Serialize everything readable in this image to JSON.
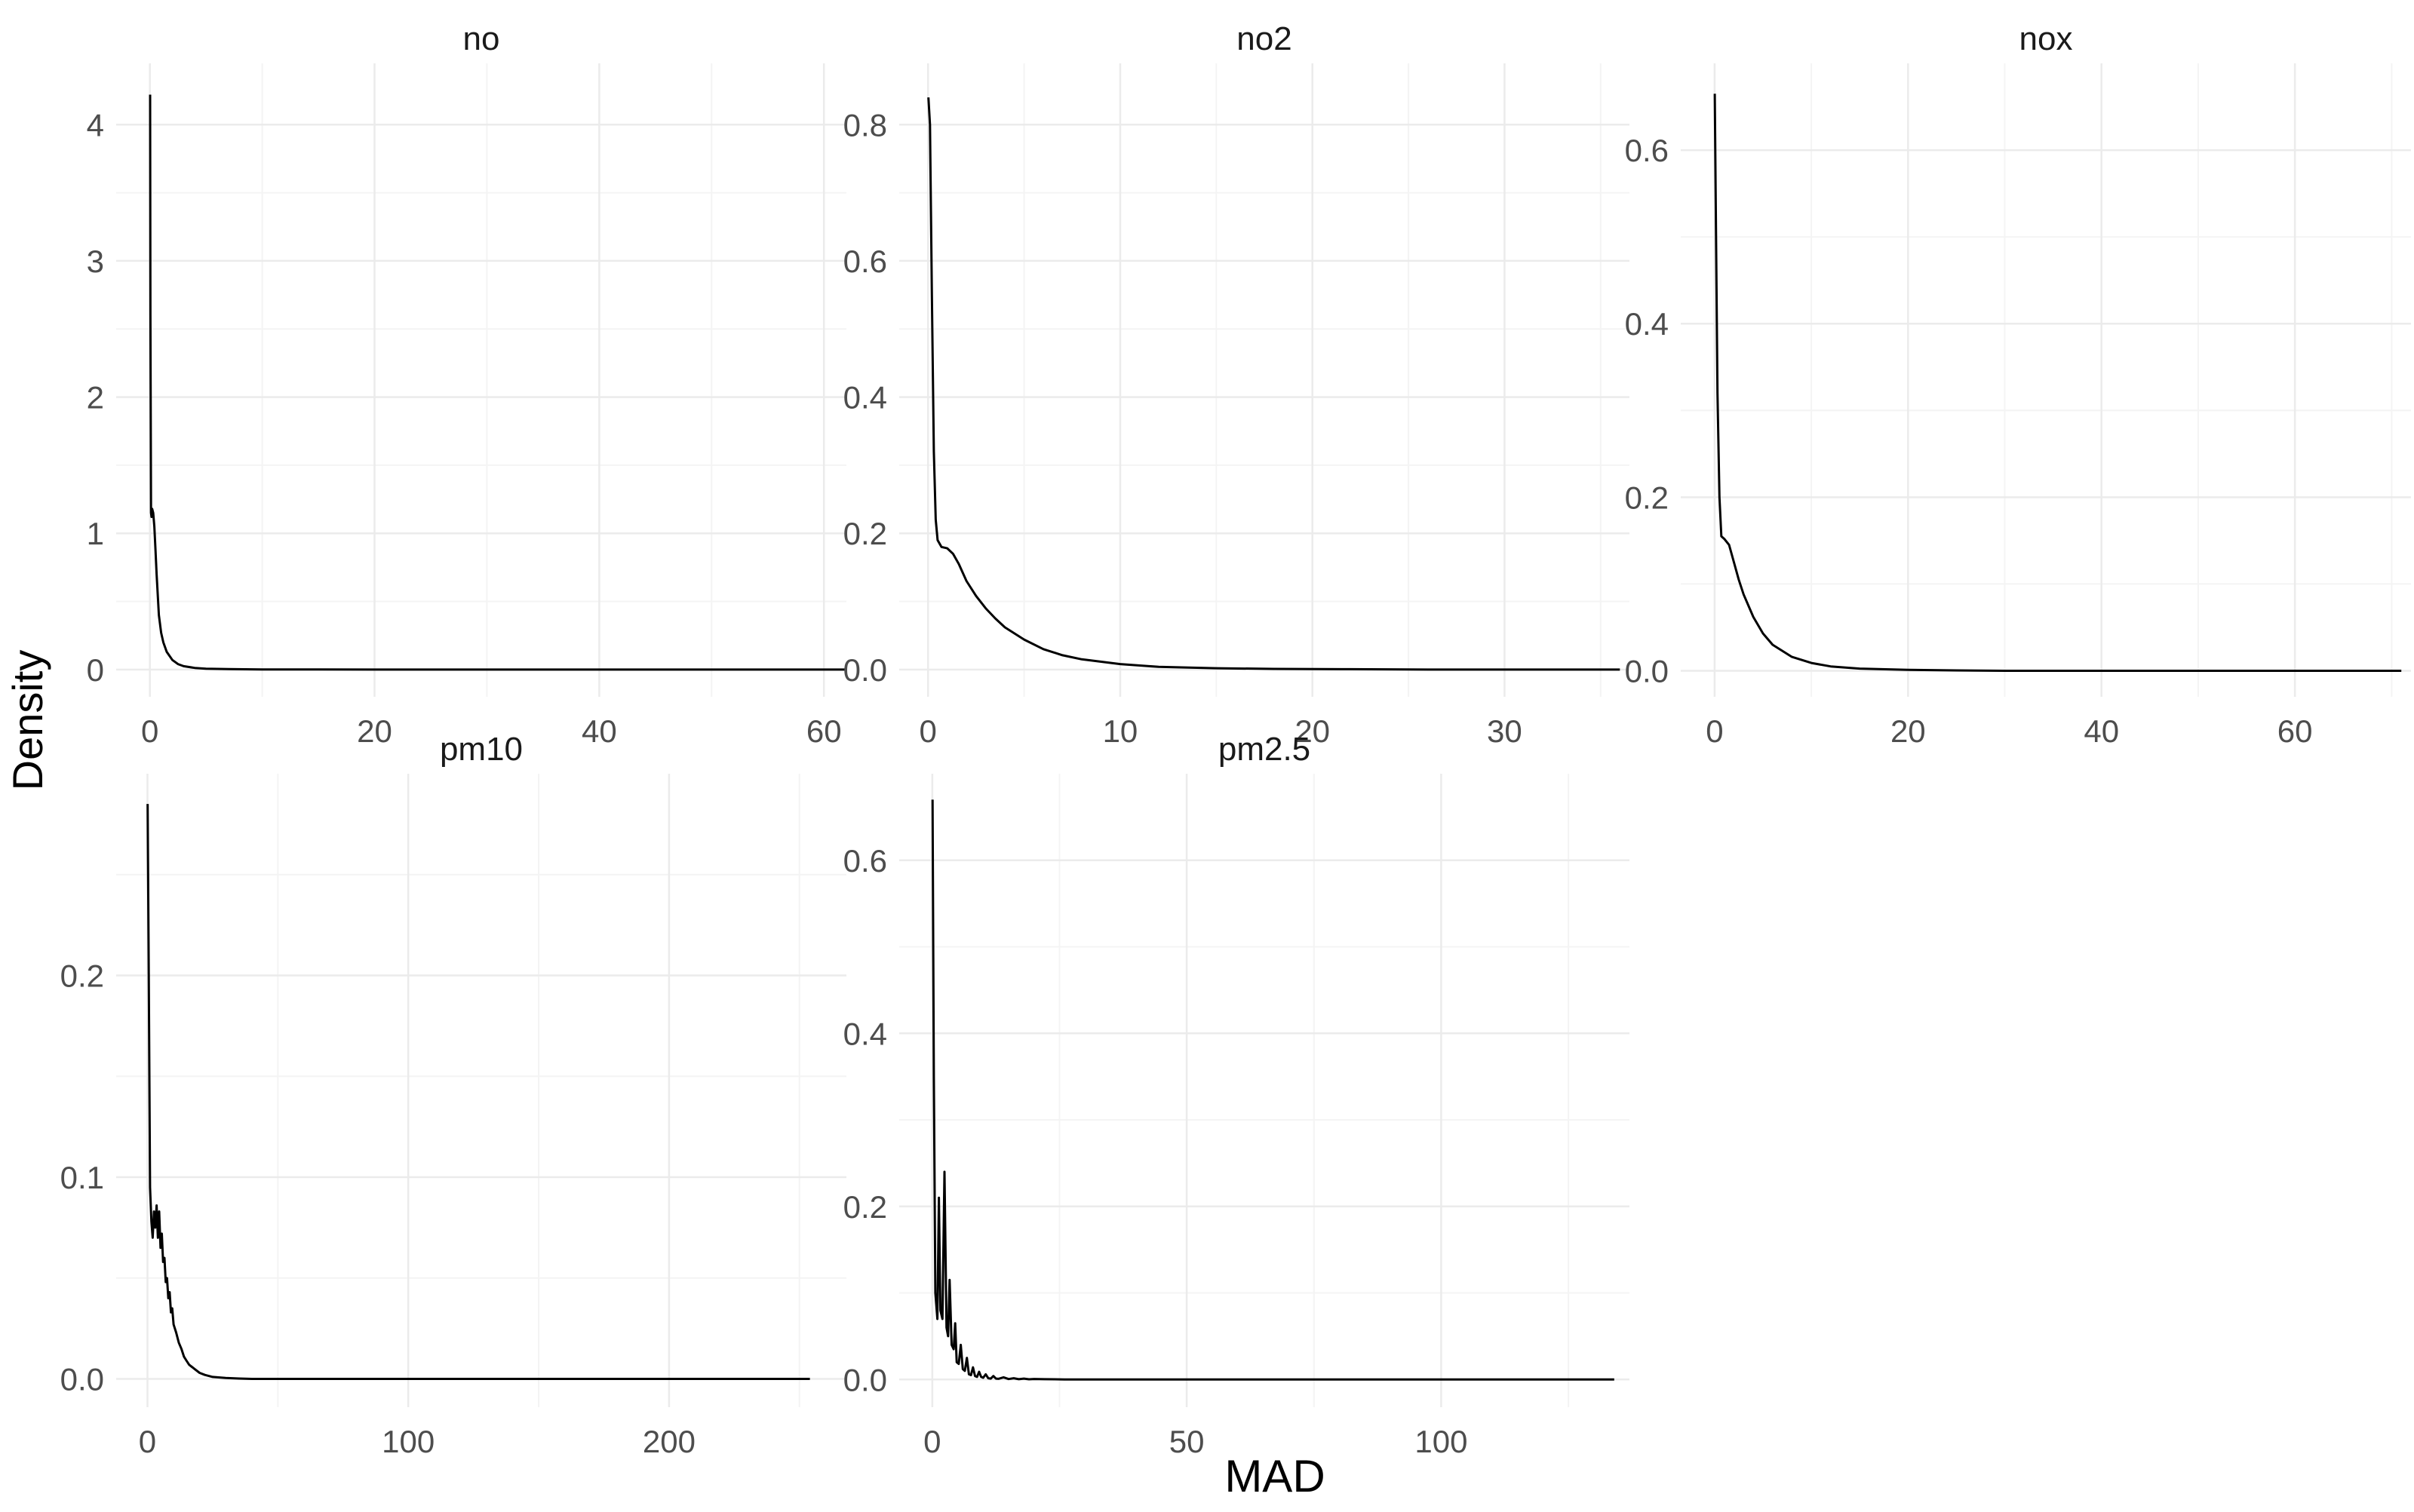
{
  "chart_data": {
    "type": "line",
    "layout": "facet_wrap",
    "xlabel": "MAD",
    "ylabel": "Density",
    "grid": true,
    "colors": {
      "line": "#000000",
      "grid_major": "#ebebeb",
      "grid_minor": "#f4f4f4",
      "tick_text": "#4d4d4d",
      "strip_text": "#1a1a1a",
      "axis_title": "#000000"
    },
    "panels": [
      {
        "title": "no",
        "xlim": [
          -3,
          62
        ],
        "ylim": [
          -0.2,
          4.45
        ],
        "xticks": [
          0,
          20,
          40,
          60
        ],
        "yticks": [
          0,
          1,
          2,
          3,
          4
        ],
        "xtick_labels": [
          "0",
          "20",
          "40",
          "60"
        ],
        "ytick_labels": [
          "0",
          "1",
          "2",
          "3",
          "4"
        ],
        "series": [
          {
            "x": [
              0.02,
              0.05,
              0.1,
              0.15,
              0.2,
              0.3,
              0.4,
              0.5,
              0.6,
              0.8,
              1.0,
              1.2,
              1.5,
              2.0,
              2.5,
              3.0,
              4.0,
              5.0,
              7.0,
              10.0,
              15.0,
              20.0,
              30.0,
              40.0,
              50.0,
              62.0
            ],
            "y": [
              4.22,
              2.6,
              1.15,
              1.12,
              1.18,
              1.15,
              1.05,
              0.88,
              0.7,
              0.4,
              0.27,
              0.2,
              0.13,
              0.07,
              0.04,
              0.025,
              0.012,
              0.006,
              0.003,
              0.001,
              0.0005,
              0,
              0,
              0,
              0,
              0
            ]
          }
        ]
      },
      {
        "title": "no2",
        "xlim": [
          -1.5,
          36.5
        ],
        "ylim": [
          -0.04,
          0.89
        ],
        "xticks": [
          0,
          10,
          20,
          30
        ],
        "yticks": [
          0.0,
          0.2,
          0.4,
          0.6,
          0.8
        ],
        "xtick_labels": [
          "0",
          "10",
          "20",
          "30"
        ],
        "ytick_labels": [
          "0.0",
          "0.2",
          "0.4",
          "0.6",
          "0.8"
        ],
        "series": [
          {
            "x": [
              0.02,
              0.1,
              0.2,
              0.3,
              0.4,
              0.5,
              0.7,
              1.0,
              1.3,
              1.6,
              2.0,
              2.5,
              3.0,
              3.5,
              4.0,
              5.0,
              6.0,
              7.0,
              8.0,
              10.0,
              12.0,
              15.0,
              18.0,
              22.0,
              26.0,
              30.0,
              36.0
            ],
            "y": [
              0.84,
              0.8,
              0.55,
              0.32,
              0.22,
              0.19,
              0.18,
              0.178,
              0.17,
              0.155,
              0.13,
              0.108,
              0.09,
              0.075,
              0.062,
              0.044,
              0.03,
              0.021,
              0.015,
              0.008,
              0.004,
              0.002,
              0.001,
              0.0005,
              0,
              0,
              0
            ]
          }
        ]
      },
      {
        "title": "nox",
        "xlim": [
          -3.5,
          72
        ],
        "ylim": [
          -0.03,
          0.7
        ],
        "xticks": [
          0,
          20,
          40,
          60
        ],
        "yticks": [
          0.0,
          0.2,
          0.4,
          0.6
        ],
        "xtick_labels": [
          "0",
          "20",
          "40",
          "60"
        ],
        "ytick_labels": [
          "0.0",
          "0.2",
          "0.4",
          "0.6"
        ],
        "series": [
          {
            "x": [
              0.02,
              0.15,
              0.3,
              0.5,
              0.7,
              1.0,
              1.5,
              2.0,
              2.5,
              3.0,
              4.0,
              5.0,
              6.0,
              8.0,
              10.0,
              12.0,
              15.0,
              20.0,
              25.0,
              30.0,
              40.0,
              50.0,
              60.0,
              71.0
            ],
            "y": [
              0.665,
              0.5,
              0.32,
              0.2,
              0.155,
              0.152,
              0.145,
              0.125,
              0.105,
              0.088,
              0.062,
              0.043,
              0.03,
              0.016,
              0.009,
              0.005,
              0.0025,
              0.001,
              0.0004,
              0,
              0,
              0,
              0,
              0
            ]
          }
        ]
      },
      {
        "title": "pm10",
        "xlim": [
          -12,
          268
        ],
        "ylim": [
          -0.014,
          0.3
        ],
        "xticks": [
          0,
          100,
          200
        ],
        "yticks": [
          0.0,
          0.1,
          0.2
        ],
        "xtick_labels": [
          "0",
          "100",
          "200"
        ],
        "ytick_labels": [
          "0.0",
          "0.1",
          "0.2"
        ],
        "series": [
          {
            "x": [
              0.05,
              0.5,
              1.0,
              1.5,
              2.0,
              2.5,
              3.0,
              3.5,
              4.0,
              4.5,
              5.0,
              5.5,
              6.0,
              6.5,
              7.0,
              7.5,
              8.0,
              8.5,
              9.0,
              9.5,
              10.0,
              11.0,
              12.0,
              13.0,
              14.0,
              15.0,
              16.0,
              17.0,
              18.0,
              20.0,
              22.0,
              25.0,
              30.0,
              35.0,
              40.0,
              50.0,
              60.0,
              80.0,
              100.0,
              150.0,
              200.0,
              254.0
            ],
            "y": [
              0.285,
              0.2,
              0.095,
              0.078,
              0.07,
              0.083,
              0.075,
              0.086,
              0.07,
              0.083,
              0.065,
              0.072,
              0.058,
              0.06,
              0.048,
              0.05,
              0.04,
              0.043,
              0.033,
              0.035,
              0.027,
              0.023,
              0.018,
              0.015,
              0.011,
              0.009,
              0.007,
              0.006,
              0.005,
              0.003,
              0.002,
              0.001,
              0.0005,
              0.0002,
              0,
              0,
              0,
              0,
              0,
              0,
              0,
              0
            ]
          }
        ]
      },
      {
        "title": "pm2.5",
        "xlim": [
          -6.5,
          137
        ],
        "ylim": [
          -0.032,
          0.7
        ],
        "xticks": [
          0,
          50,
          100
        ],
        "yticks": [
          0.0,
          0.2,
          0.4,
          0.6
        ],
        "xtick_labels": [
          "0",
          "50",
          "100"
        ],
        "ytick_labels": [
          "0.0",
          "0.2",
          "0.4",
          "0.6"
        ],
        "series": [
          {
            "x": [
              0.05,
              0.3,
              0.6,
              1.0,
              1.3,
              1.6,
              2.0,
              2.4,
              2.8,
              3.1,
              3.4,
              3.8,
              4.2,
              4.5,
              4.8,
              5.2,
              5.6,
              6.0,
              6.4,
              6.8,
              7.2,
              7.6,
              8.0,
              8.4,
              8.8,
              9.2,
              9.6,
              10.0,
              10.5,
              11.0,
              11.5,
              12.0,
              12.5,
              13.0,
              14.0,
              15.0,
              16.0,
              17.0,
              18.0,
              19.0,
              20.0,
              22.0,
              24.0,
              26.0,
              30.0,
              40.0,
              60.0,
              80.0,
              100.0,
              134.0
            ],
            "y": [
              0.67,
              0.35,
              0.1,
              0.07,
              0.21,
              0.08,
              0.07,
              0.24,
              0.06,
              0.05,
              0.115,
              0.04,
              0.035,
              0.065,
              0.02,
              0.018,
              0.04,
              0.012,
              0.01,
              0.025,
              0.006,
              0.005,
              0.014,
              0.004,
              0.003,
              0.009,
              0.003,
              0.002,
              0.006,
              0.0015,
              0.001,
              0.004,
              0.001,
              0.0008,
              0.0025,
              0.0005,
              0.0015,
              0.0003,
              0.001,
              0.0002,
              0.0006,
              0.0003,
              0.0002,
              0.0001,
              0,
              0,
              0,
              0,
              0,
              0
            ]
          }
        ]
      }
    ]
  }
}
